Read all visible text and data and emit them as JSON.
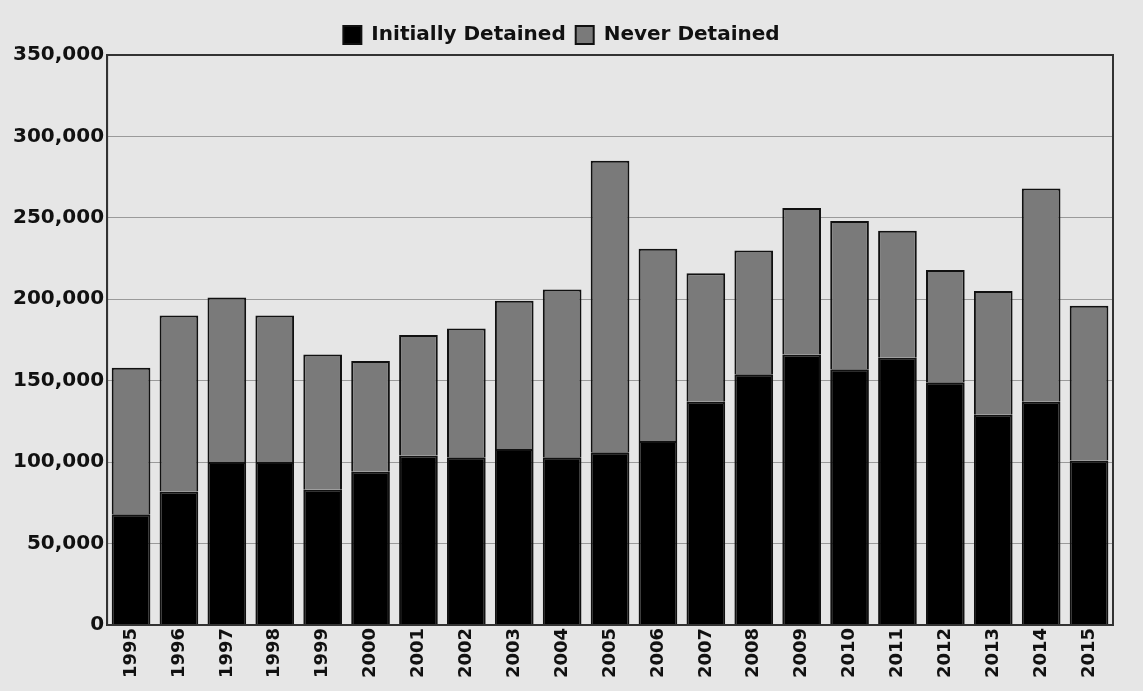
{
  "chart_data": {
    "type": "bar",
    "stacked": true,
    "categories": [
      "1995",
      "1996",
      "1997",
      "1998",
      "1999",
      "2000",
      "2001",
      "2002",
      "2003",
      "2004",
      "2005",
      "2006",
      "2007",
      "2008",
      "2009",
      "2010",
      "2011",
      "2012",
      "2013",
      "2014",
      "2015"
    ],
    "series": [
      {
        "name": "Initially Detained",
        "color": "#000000",
        "values": [
          68000,
          82000,
          100000,
          100000,
          83000,
          94000,
          104000,
          103000,
          108000,
          103000,
          106000,
          113000,
          137000,
          154000,
          166000,
          157000,
          164000,
          149000,
          129000,
          137000,
          101000
        ]
      },
      {
        "name": "Never Detained",
        "color": "#7a7a7a",
        "values": [
          90000,
          108000,
          101000,
          90000,
          83000,
          68000,
          74000,
          79000,
          91000,
          103000,
          179000,
          118000,
          79000,
          76000,
          90000,
          91000,
          78000,
          69000,
          76000,
          131000,
          95000
        ]
      }
    ],
    "ylim": [
      0,
      350000
    ],
    "yticks": [
      0,
      {
        "value": 50000,
        "label": "50,000"
      },
      {
        "value": 100000,
        "label": "100,000"
      },
      {
        "value": 150000,
        "label": "150,000"
      },
      {
        "value": 200000,
        "label": "200,000"
      },
      {
        "value": 250000,
        "label": "250,000"
      },
      {
        "value": 300000,
        "label": "300,000"
      },
      {
        "value": 350000,
        "label": "350,000"
      }
    ],
    "grid": "y",
    "legend": "top"
  }
}
